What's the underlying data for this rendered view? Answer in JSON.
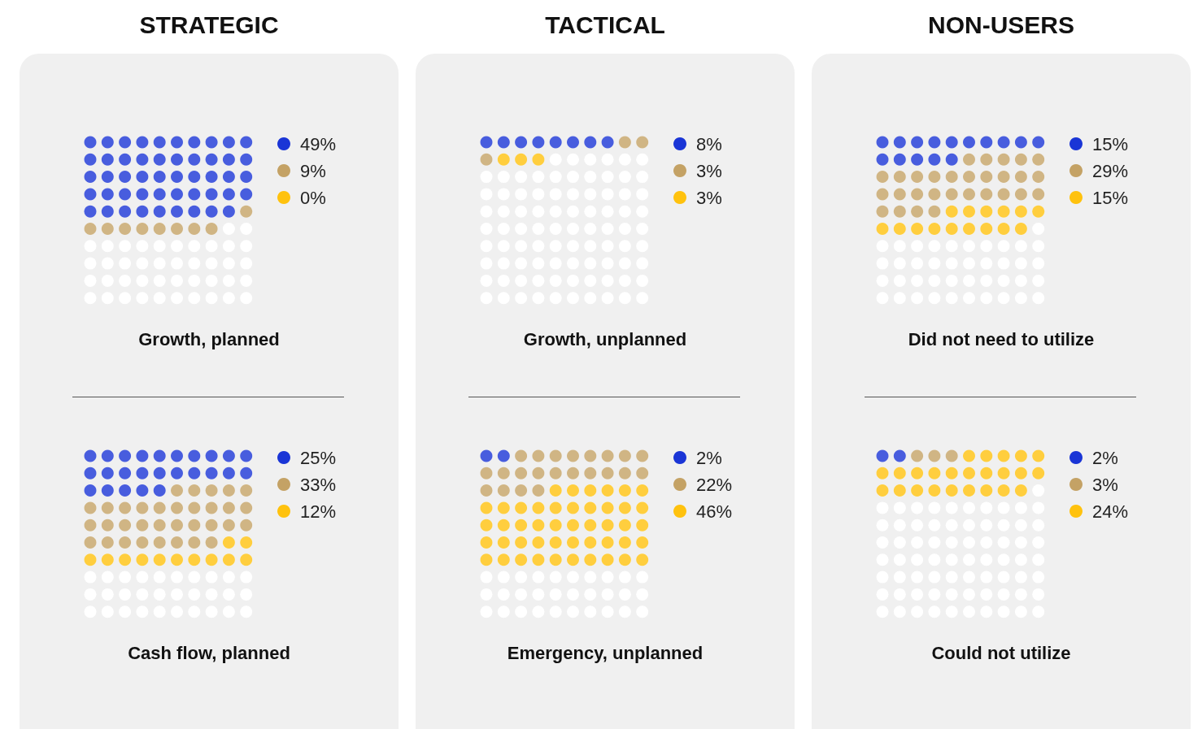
{
  "chart_data": [
    {
      "type": "other",
      "title": "STRATEGIC",
      "xlabel": "Growth, planned",
      "values": [
        49,
        9,
        0
      ],
      "value_labels": [
        "49%",
        "9%",
        "0%"
      ],
      "colors": [
        "#1a35d6",
        "#c4a265",
        "#ffc20e"
      ]
    },
    {
      "type": "other",
      "title": "TACTICAL",
      "xlabel": "Growth, unplanned",
      "values": [
        8,
        3,
        3
      ],
      "value_labels": [
        "8%",
        "3%",
        "3%"
      ],
      "colors": [
        "#1a35d6",
        "#c4a265",
        "#ffc20e"
      ]
    },
    {
      "type": "other",
      "title": "NON-USERS",
      "xlabel": "Did not need to utilize",
      "values": [
        15,
        29,
        15
      ],
      "value_labels": [
        "15%",
        "29%",
        "15%"
      ],
      "colors": [
        "#1a35d6",
        "#c4a265",
        "#ffc20e"
      ]
    },
    {
      "type": "other",
      "xlabel": "Cash flow, planned",
      "values": [
        25,
        33,
        12
      ],
      "value_labels": [
        "25%",
        "33%",
        "12%"
      ],
      "colors": [
        "#1a35d6",
        "#c4a265",
        "#ffc20e"
      ]
    },
    {
      "type": "other",
      "xlabel": "Emergency, unplanned",
      "values": [
        2,
        22,
        46
      ],
      "value_labels": [
        "2%",
        "22%",
        "46%"
      ],
      "colors": [
        "#1a35d6",
        "#c4a265",
        "#ffc20e"
      ]
    },
    {
      "type": "other",
      "xlabel": "Could not utilize",
      "values": [
        2,
        3,
        24
      ],
      "value_labels": [
        "2%",
        "3%",
        "24%"
      ],
      "colors": [
        "#1a35d6",
        "#c4a265",
        "#ffc20e"
      ]
    }
  ]
}
